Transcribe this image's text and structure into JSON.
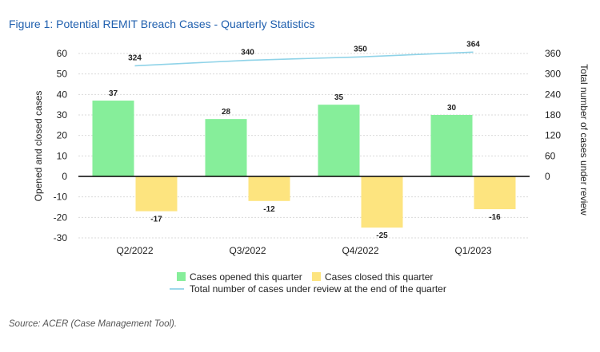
{
  "figure": {
    "title": "Figure 1: Potential REMIT Breach Cases - Quarterly Statistics",
    "source": "Source: ACER (Case Management Tool)."
  },
  "chart_data": {
    "type": "bar",
    "categories": [
      "Q2/2022",
      "Q3/2022",
      "Q4/2022",
      "Q1/2023"
    ],
    "series": [
      {
        "name": "Cases opened this quarter",
        "type": "bar",
        "axis": "left",
        "values": [
          37,
          28,
          35,
          30
        ],
        "color": "#86ee9a"
      },
      {
        "name": "Cases closed this quarter",
        "type": "bar",
        "axis": "left",
        "values": [
          -17,
          -12,
          -25,
          -16
        ],
        "color": "#fde47f"
      },
      {
        "name": "Total number of cases under review at the end of the quarter",
        "type": "line",
        "axis": "right",
        "values": [
          324,
          340,
          350,
          364
        ],
        "color": "#8fd3e8"
      }
    ],
    "ylabel": "Opened and closed cases",
    "y2label": "Total number of cases under review",
    "ylim": [
      -30,
      60
    ],
    "yticks": [
      -30,
      -20,
      -10,
      0,
      10,
      20,
      30,
      40,
      50,
      60
    ],
    "y2lim": [
      0,
      360
    ],
    "y2ticks": [
      0,
      60,
      120,
      180,
      240,
      300,
      360
    ],
    "grid": true,
    "legend_position": "bottom"
  }
}
